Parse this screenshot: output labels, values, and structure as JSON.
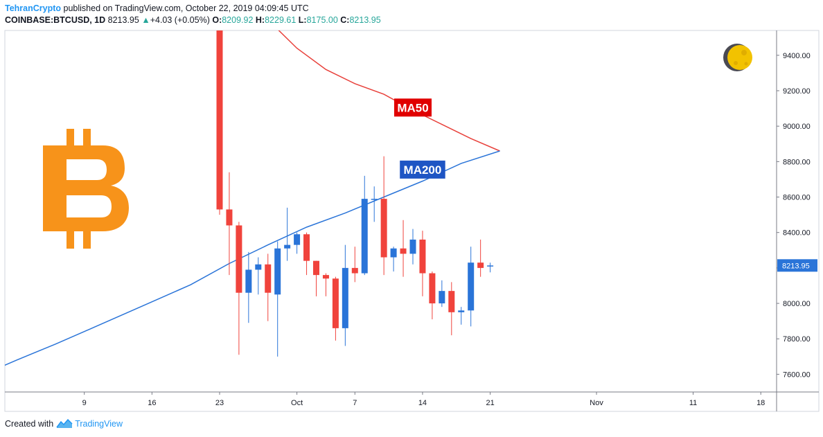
{
  "header": {
    "author": "TehranCrypto",
    "published": "published on TradingView.com, October 22, 2019 04:09:45 UTC",
    "symbol": "COINBASE:BTCUSD, 1D",
    "price": "8213.95",
    "change_arrow": "▲",
    "change": "+4.03 (+0.05%)",
    "o_label": "O:",
    "o_value": "8209.92",
    "h_label": "H:",
    "h_value": "8229.61",
    "l_label": "L:",
    "l_value": "8175.00",
    "c_label": "C:",
    "c_value": "8213.95"
  },
  "footer": {
    "created": "Created with",
    "brand": "TradingView"
  },
  "colors": {
    "up": "#2a74d8",
    "down": "#f0433c",
    "ma50": "#e8403a",
    "ma200": "#2a74d8",
    "bitcoin": "#f7931a",
    "price_label_bg": "#2a74d8"
  },
  "icons": {
    "logo": "bitcoin-logo",
    "moon": "moon-icon",
    "brand": "tradingview-logo"
  },
  "chart_data": {
    "type": "candlestick",
    "title": "",
    "y_axis_side": "right",
    "ylim": [
      7500,
      9540
    ],
    "y_ticks": [
      "9400.00",
      "9200.00",
      "9000.00",
      "8800.00",
      "8600.00",
      "8400.00",
      "8200.00",
      "8000.00",
      "7800.00",
      "7600.00"
    ],
    "x_ticks": [
      {
        "label": "9",
        "date": "2019-09-09"
      },
      {
        "label": "16",
        "date": "2019-09-16"
      },
      {
        "label": "23",
        "date": "2019-09-23"
      },
      {
        "label": "Oct",
        "date": "2019-10-01"
      },
      {
        "label": "7",
        "date": "2019-10-07"
      },
      {
        "label": "14",
        "date": "2019-10-14"
      },
      {
        "label": "21",
        "date": "2019-10-21"
      },
      {
        "label": "Nov",
        "date": "2019-11-01"
      },
      {
        "label": "11",
        "date": "2019-11-11"
      },
      {
        "label": "18",
        "date": "2019-11-18"
      }
    ],
    "current_price_label": "8213.95",
    "candles": [
      {
        "date": "2019-09-23",
        "o": 9680,
        "h": 9750,
        "l": 8500,
        "c": 8530
      },
      {
        "date": "2019-09-24",
        "o": 8530,
        "h": 8740,
        "l": 8160,
        "c": 8440
      },
      {
        "date": "2019-09-25",
        "o": 8440,
        "h": 8460,
        "l": 7710,
        "c": 8060
      },
      {
        "date": "2019-09-26",
        "o": 8060,
        "h": 8290,
        "l": 7890,
        "c": 8190
      },
      {
        "date": "2019-09-27",
        "o": 8190,
        "h": 8260,
        "l": 8050,
        "c": 8220
      },
      {
        "date": "2019-09-28",
        "o": 8220,
        "h": 8280,
        "l": 7900,
        "c": 8060
      },
      {
        "date": "2019-09-29",
        "o": 8050,
        "h": 8350,
        "l": 7700,
        "c": 8310
      },
      {
        "date": "2019-09-30",
        "o": 8310,
        "h": 8540,
        "l": 8240,
        "c": 8330
      },
      {
        "date": "2019-10-01",
        "o": 8330,
        "h": 8400,
        "l": 8280,
        "c": 8390
      },
      {
        "date": "2019-10-02",
        "o": 8390,
        "h": 8400,
        "l": 8160,
        "c": 8240
      },
      {
        "date": "2019-10-03",
        "o": 8240,
        "h": 8240,
        "l": 8040,
        "c": 8160
      },
      {
        "date": "2019-10-04",
        "o": 8160,
        "h": 8170,
        "l": 8040,
        "c": 8140
      },
      {
        "date": "2019-10-05",
        "o": 8140,
        "h": 8150,
        "l": 7790,
        "c": 7860
      },
      {
        "date": "2019-10-06",
        "o": 7860,
        "h": 8330,
        "l": 7760,
        "c": 8200
      },
      {
        "date": "2019-10-07",
        "o": 8200,
        "h": 8320,
        "l": 8120,
        "c": 8170
      },
      {
        "date": "2019-10-08",
        "o": 8170,
        "h": 8720,
        "l": 8160,
        "c": 8590
      },
      {
        "date": "2019-10-09",
        "o": 8590,
        "h": 8660,
        "l": 8460,
        "c": 8590
      },
      {
        "date": "2019-10-10",
        "o": 8590,
        "h": 8830,
        "l": 8160,
        "c": 8260
      },
      {
        "date": "2019-10-11",
        "o": 8260,
        "h": 8320,
        "l": 8180,
        "c": 8310
      },
      {
        "date": "2019-10-12",
        "o": 8310,
        "h": 8470,
        "l": 8150,
        "c": 8280
      },
      {
        "date": "2019-10-13",
        "o": 8280,
        "h": 8420,
        "l": 8220,
        "c": 8360
      },
      {
        "date": "2019-10-14",
        "o": 8360,
        "h": 8410,
        "l": 8040,
        "c": 8170
      },
      {
        "date": "2019-10-15",
        "o": 8170,
        "h": 8180,
        "l": 7910,
        "c": 8000
      },
      {
        "date": "2019-10-16",
        "o": 8000,
        "h": 8130,
        "l": 7980,
        "c": 8070
      },
      {
        "date": "2019-10-17",
        "o": 8070,
        "h": 8120,
        "l": 7820,
        "c": 7950
      },
      {
        "date": "2019-10-18",
        "o": 7950,
        "h": 7980,
        "l": 7880,
        "c": 7960
      },
      {
        "date": "2019-10-19",
        "o": 7960,
        "h": 8320,
        "l": 7870,
        "c": 8230
      },
      {
        "date": "2019-10-20",
        "o": 8230,
        "h": 8360,
        "l": 8150,
        "c": 8200
      },
      {
        "date": "2019-10-21",
        "o": 8209.92,
        "h": 8229.61,
        "l": 8175.0,
        "c": 8213.95
      }
    ],
    "series": [
      {
        "name": "MA50",
        "color": "#e8403a",
        "points": [
          {
            "date": "2019-09-28",
            "y": 9600
          },
          {
            "date": "2019-10-01",
            "y": 9440
          },
          {
            "date": "2019-10-04",
            "y": 9320
          },
          {
            "date": "2019-10-07",
            "y": 9240
          },
          {
            "date": "2019-10-10",
            "y": 9180
          },
          {
            "date": "2019-10-13",
            "y": 9090
          },
          {
            "date": "2019-10-16",
            "y": 9010
          },
          {
            "date": "2019-10-19",
            "y": 8930
          },
          {
            "date": "2019-10-22",
            "y": 8860
          }
        ]
      },
      {
        "name": "MA200",
        "color": "#2a74d8",
        "points": [
          {
            "date": "2019-08-29",
            "y": 7585
          },
          {
            "date": "2019-09-02",
            "y": 7680
          },
          {
            "date": "2019-09-06",
            "y": 7770
          },
          {
            "date": "2019-09-10",
            "y": 7865
          },
          {
            "date": "2019-09-15",
            "y": 7985
          },
          {
            "date": "2019-09-20",
            "y": 8105
          },
          {
            "date": "2019-09-24",
            "y": 8225
          },
          {
            "date": "2019-09-28",
            "y": 8330
          },
          {
            "date": "2019-10-02",
            "y": 8430
          },
          {
            "date": "2019-10-06",
            "y": 8510
          },
          {
            "date": "2019-10-10",
            "y": 8600
          },
          {
            "date": "2019-10-14",
            "y": 8690
          },
          {
            "date": "2019-10-18",
            "y": 8790
          },
          {
            "date": "2019-10-22",
            "y": 8860
          }
        ]
      }
    ],
    "annotations": [
      {
        "text": "MA50",
        "anchor_date": "2019-10-13",
        "anchor_y": 9105,
        "bg": "#e00000"
      },
      {
        "text": "MA200",
        "anchor_date": "2019-10-14",
        "anchor_y": 8755,
        "bg": "#1e55c4"
      }
    ]
  }
}
